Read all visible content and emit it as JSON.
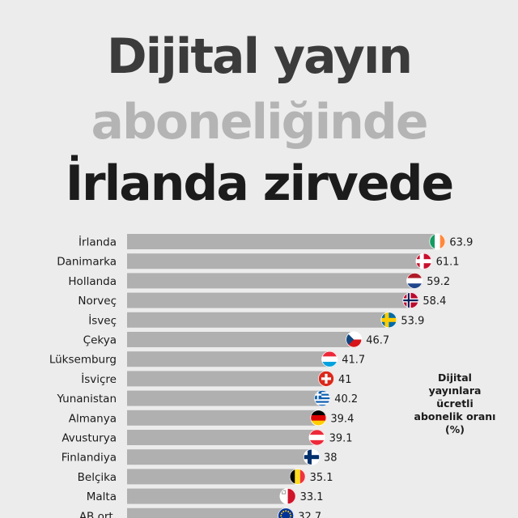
{
  "title": {
    "line1": "Dijital yayın",
    "line2": "aboneliğinde",
    "line3": "İrlanda zirvede",
    "colors": {
      "dark": "#3b3b3b",
      "light": "#b4b4b4",
      "black": "#1c1c1c"
    }
  },
  "note": "Dijital yayınlara ücretli abonelik oranı (%)",
  "chart_data": {
    "type": "bar",
    "orientation": "horizontal",
    "categories": [
      "İrlanda",
      "Danimarka",
      "Hollanda",
      "Norveç",
      "İsveç",
      "Çekya",
      "Lüksemburg",
      "İsviçre",
      "Yunanistan",
      "Almanya",
      "Avusturya",
      "Finlandiya",
      "Belçika",
      "Malta",
      "AB ort."
    ],
    "values": [
      63.9,
      61.1,
      59.2,
      58.4,
      53.9,
      46.7,
      41.7,
      41,
      40.2,
      39.4,
      39.1,
      38,
      35.1,
      33.1,
      32.7
    ],
    "value_labels": [
      "63.9",
      "61.1",
      "59.2",
      "58.4",
      "53.9",
      "46.7",
      "41.7",
      "41",
      "40.2",
      "39.4",
      "39.1",
      "38",
      "35.1",
      "33.1",
      "32.7"
    ],
    "flags": [
      "ireland-flag-icon",
      "denmark-flag-icon",
      "netherlands-flag-icon",
      "norway-flag-icon",
      "sweden-flag-icon",
      "czechia-flag-icon",
      "luxembourg-flag-icon",
      "switzerland-flag-icon",
      "greece-flag-icon",
      "germany-flag-icon",
      "austria-flag-icon",
      "finland-flag-icon",
      "belgium-flag-icon",
      "malta-flag-icon",
      "eu-flag-icon"
    ],
    "bar_color": "#b0b0b0",
    "grid": false
  }
}
